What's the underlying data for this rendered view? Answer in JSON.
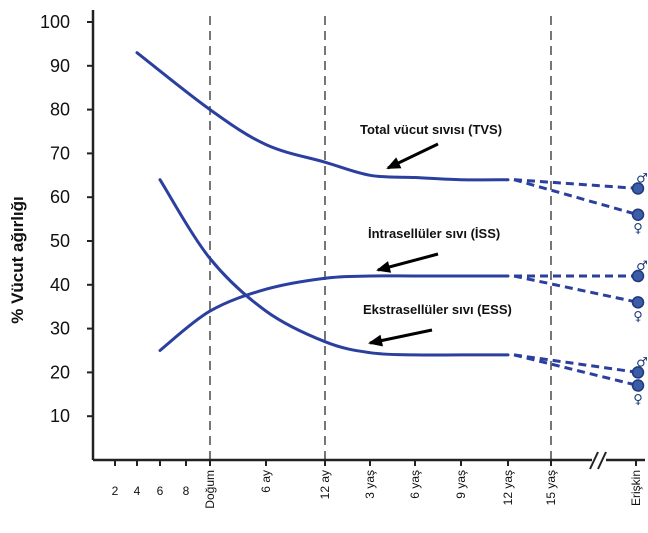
{
  "chart_data": {
    "type": "line",
    "title": "",
    "ylabel": "% Vücut ağırlığı",
    "xlabel": "",
    "ylim": [
      0,
      100
    ],
    "yticks": [
      10,
      20,
      30,
      40,
      50,
      60,
      70,
      80,
      90,
      100
    ],
    "x_tick_labels": [
      "2",
      "4",
      "6",
      "8",
      "Doğum",
      "6 ay",
      "12 ay",
      "3 yaş",
      "6 yaş",
      "9 yaş",
      "12 yaş",
      "15 yaş",
      "Erişkin"
    ],
    "vertical_dashed_lines_at": [
      "Doğum",
      "12 ay",
      "15 yaş"
    ],
    "axis_break_before": "Erişkin",
    "line_color": "#2b3f9e",
    "series": [
      {
        "name": "Total vücut sıvısı (TVS)",
        "x": [
          "4",
          "Doğum",
          "6 ay",
          "12 ay",
          "3 yaş",
          "6 yaş",
          "9 yaş",
          "12 yaş"
        ],
        "values": [
          93,
          80,
          72,
          68,
          65,
          64.5,
          64,
          64
        ],
        "adult": {
          "male": 62,
          "female": 56
        }
      },
      {
        "name": "İntrasellüler sıvı (İSS)",
        "x": [
          "6",
          "Doğum",
          "6 ay",
          "12 ay",
          "3 yaş",
          "6 yaş",
          "9 yaş",
          "12 yaş"
        ],
        "values": [
          25,
          34,
          39,
          41.5,
          42,
          42,
          42,
          42
        ],
        "adult": {
          "male": 42,
          "female": 36
        }
      },
      {
        "name": "Ekstrasellüler sıvı (ESS)",
        "x": [
          "6",
          "Doğum",
          "6 ay",
          "12 ay",
          "3 yaş",
          "6 yaş",
          "9 yaş",
          "12 yaş"
        ],
        "values": [
          64,
          46,
          34,
          27,
          24.5,
          24,
          24,
          24
        ],
        "adult": {
          "male": 20,
          "female": 17
        }
      }
    ],
    "annotations": [
      {
        "text": "Total vücut sıvısı (TVS)",
        "series": 0
      },
      {
        "text": "İntrasellüler sıvı (İSS)",
        "series": 1
      },
      {
        "text": "Ekstrasellüler sıvı (ESS)",
        "series": 2
      }
    ],
    "symbols": {
      "male": "♂",
      "female": "♀"
    }
  }
}
